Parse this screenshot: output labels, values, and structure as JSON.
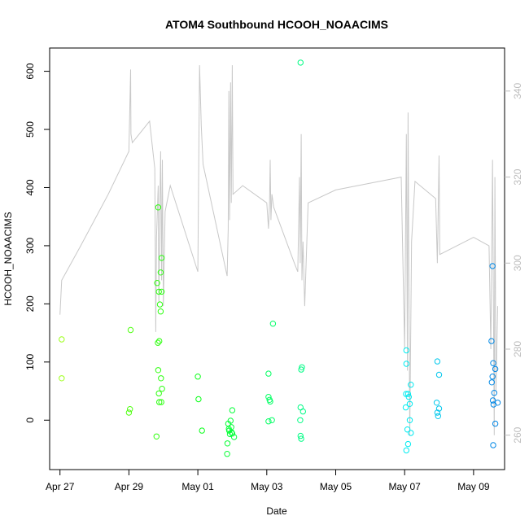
{
  "chart_data": {
    "type": "scatter",
    "title": "ATOM4 Southbound HCOOH_NOAACIMS",
    "xlabel": "Date",
    "ylabel": "HCOOH_NOAACIMS",
    "x_ticks": [
      "Apr 27",
      "Apr 29",
      "May 01",
      "May 03",
      "May 05",
      "May 07",
      "May 09"
    ],
    "y_ticks": [
      0,
      100,
      200,
      300,
      400,
      500,
      600
    ],
    "y_right_ticks": [
      260,
      280,
      300,
      320,
      340
    ],
    "xlim_days": [
      -0.3,
      12.9
    ],
    "ylim": [
      -85,
      640
    ],
    "y_right_lim": [
      252,
      350
    ],
    "grid": false,
    "points_color_note": "green to blue by date",
    "points": [
      {
        "d": 0.05,
        "v": 139
      },
      {
        "d": 0.05,
        "v": 72
      },
      {
        "d": 2.05,
        "v": 155
      },
      {
        "d": 2.03,
        "v": 19
      },
      {
        "d": 2.0,
        "v": 13
      },
      {
        "d": 2.8,
        "v": -28
      },
      {
        "d": 2.85,
        "v": 366
      },
      {
        "d": 2.82,
        "v": 236
      },
      {
        "d": 2.87,
        "v": 221
      },
      {
        "d": 2.84,
        "v": 133
      },
      {
        "d": 2.88,
        "v": 136
      },
      {
        "d": 2.85,
        "v": 86
      },
      {
        "d": 2.87,
        "v": 46
      },
      {
        "d": 2.88,
        "v": 31
      },
      {
        "d": 2.95,
        "v": 279
      },
      {
        "d": 2.92,
        "v": 254
      },
      {
        "d": 2.95,
        "v": 221
      },
      {
        "d": 2.92,
        "v": 187
      },
      {
        "d": 2.9,
        "v": 199
      },
      {
        "d": 2.93,
        "v": 72
      },
      {
        "d": 2.96,
        "v": 54
      },
      {
        "d": 2.94,
        "v": 31
      },
      {
        "d": 4.0,
        "v": 75
      },
      {
        "d": 4.02,
        "v": 36
      },
      {
        "d": 4.12,
        "v": -18
      },
      {
        "d": 4.85,
        "v": -58
      },
      {
        "d": 4.86,
        "v": -40
      },
      {
        "d": 4.88,
        "v": -6
      },
      {
        "d": 4.9,
        "v": -15
      },
      {
        "d": 4.91,
        "v": -18
      },
      {
        "d": 4.93,
        "v": -24
      },
      {
        "d": 4.95,
        "v": -1
      },
      {
        "d": 4.97,
        "v": -12
      },
      {
        "d": 4.98,
        "v": -21
      },
      {
        "d": 5.0,
        "v": -23
      },
      {
        "d": 5.0,
        "v": 17
      },
      {
        "d": 5.05,
        "v": -29
      },
      {
        "d": 6.05,
        "v": 80
      },
      {
        "d": 6.05,
        "v": 40
      },
      {
        "d": 6.08,
        "v": 35
      },
      {
        "d": 6.1,
        "v": 32
      },
      {
        "d": 6.05,
        "v": -2
      },
      {
        "d": 6.15,
        "v": 0
      },
      {
        "d": 6.18,
        "v": 166
      },
      {
        "d": 6.98,
        "v": 615
      },
      {
        "d": 7.02,
        "v": 91
      },
      {
        "d": 7.0,
        "v": 87
      },
      {
        "d": 6.98,
        "v": 22
      },
      {
        "d": 7.05,
        "v": 15
      },
      {
        "d": 6.97,
        "v": 0
      },
      {
        "d": 6.98,
        "v": -27
      },
      {
        "d": 7.0,
        "v": -32
      },
      {
        "d": 10.05,
        "v": 120
      },
      {
        "d": 10.05,
        "v": 97
      },
      {
        "d": 10.04,
        "v": 45
      },
      {
        "d": 10.1,
        "v": 45
      },
      {
        "d": 10.12,
        "v": 40
      },
      {
        "d": 10.03,
        "v": 22
      },
      {
        "d": 10.15,
        "v": 28
      },
      {
        "d": 10.08,
        "v": -16
      },
      {
        "d": 10.18,
        "v": -22
      },
      {
        "d": 10.1,
        "v": -41
      },
      {
        "d": 10.05,
        "v": -52
      },
      {
        "d": 10.18,
        "v": 61
      },
      {
        "d": 10.15,
        "v": 0
      },
      {
        "d": 10.95,
        "v": 101
      },
      {
        "d": 11.0,
        "v": 78
      },
      {
        "d": 10.93,
        "v": 30
      },
      {
        "d": 11.0,
        "v": 20
      },
      {
        "d": 10.95,
        "v": 13
      },
      {
        "d": 10.97,
        "v": 7
      },
      {
        "d": 12.55,
        "v": 265
      },
      {
        "d": 12.52,
        "v": 136
      },
      {
        "d": 12.57,
        "v": 98
      },
      {
        "d": 12.63,
        "v": 88
      },
      {
        "d": 12.55,
        "v": 75
      },
      {
        "d": 12.53,
        "v": 65
      },
      {
        "d": 12.6,
        "v": 47
      },
      {
        "d": 12.56,
        "v": 34
      },
      {
        "d": 12.7,
        "v": 30
      },
      {
        "d": 12.58,
        "v": 27
      },
      {
        "d": 12.63,
        "v": -6
      },
      {
        "d": 12.57,
        "v": -43
      }
    ],
    "line_right_axis": [
      [
        0.0,
        288
      ],
      [
        0.05,
        296
      ],
      [
        0.6,
        304
      ],
      [
        1.4,
        316
      ],
      [
        2.0,
        326
      ],
      [
        2.05,
        345
      ],
      [
        2.06,
        330
      ],
      [
        2.1,
        328
      ],
      [
        2.6,
        333
      ],
      [
        2.75,
        322
      ],
      [
        2.78,
        284
      ],
      [
        2.8,
        306
      ],
      [
        2.85,
        318
      ],
      [
        2.87,
        291
      ],
      [
        2.9,
        314
      ],
      [
        2.92,
        326
      ],
      [
        2.95,
        296
      ],
      [
        2.97,
        324
      ],
      [
        3.0,
        290
      ],
      [
        3.05,
        312
      ],
      [
        3.2,
        318
      ],
      [
        4.0,
        298
      ],
      [
        4.05,
        346
      ],
      [
        4.1,
        332
      ],
      [
        4.15,
        323
      ],
      [
        4.5,
        310
      ],
      [
        4.85,
        297
      ],
      [
        4.88,
        308
      ],
      [
        4.9,
        340
      ],
      [
        4.92,
        310
      ],
      [
        4.95,
        342
      ],
      [
        4.97,
        314
      ],
      [
        5.0,
        346
      ],
      [
        5.02,
        316
      ],
      [
        5.3,
        318
      ],
      [
        6.0,
        314
      ],
      [
        6.05,
        308
      ],
      [
        6.08,
        314
      ],
      [
        6.1,
        324
      ],
      [
        6.12,
        310
      ],
      [
        6.15,
        316
      ],
      [
        6.2,
        313
      ],
      [
        6.8,
        300
      ],
      [
        6.9,
        298
      ],
      [
        6.95,
        320
      ],
      [
        6.97,
        300
      ],
      [
        7.0,
        330
      ],
      [
        7.02,
        296
      ],
      [
        7.05,
        305
      ],
      [
        7.1,
        290
      ],
      [
        7.2,
        314
      ],
      [
        8.0,
        317
      ],
      [
        9.9,
        320
      ],
      [
        10.0,
        280
      ],
      [
        10.05,
        330
      ],
      [
        10.08,
        275
      ],
      [
        10.1,
        335
      ],
      [
        10.15,
        260
      ],
      [
        10.2,
        305
      ],
      [
        10.3,
        319
      ],
      [
        10.9,
        315
      ],
      [
        10.95,
        300
      ],
      [
        11.0,
        325
      ],
      [
        11.02,
        302
      ],
      [
        12.0,
        306
      ],
      [
        12.45,
        304
      ],
      [
        12.5,
        280
      ],
      [
        12.55,
        324
      ],
      [
        12.6,
        260
      ],
      [
        12.62,
        320
      ],
      [
        12.65,
        270
      ],
      [
        12.7,
        290
      ]
    ]
  }
}
